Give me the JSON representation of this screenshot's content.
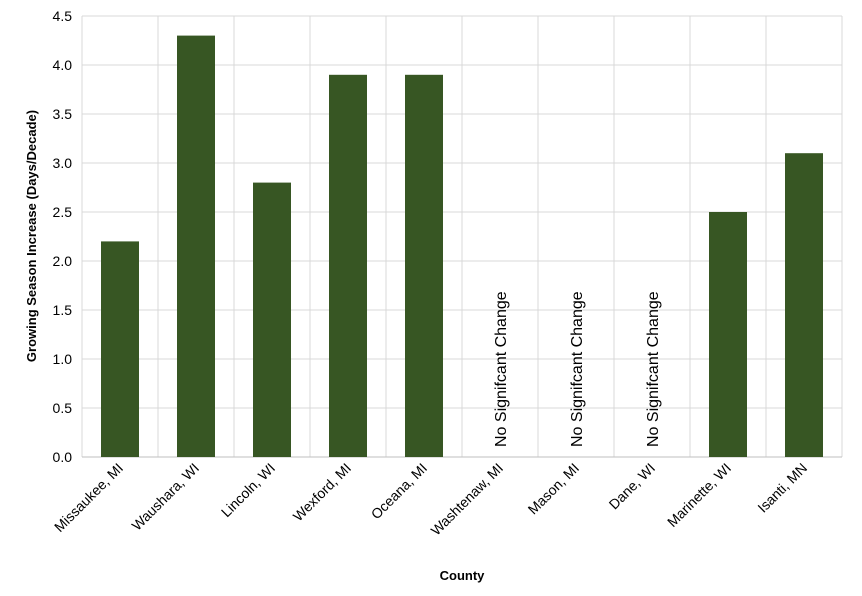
{
  "chart_data": {
    "type": "bar",
    "y_label": "Growing Season Increase (Days/Decade)",
    "x_label": "County",
    "categories": [
      "Missaukee, MI",
      "Waushara, WI",
      "Lincoln, WI",
      "Wexford, MI",
      "Oceana, MI",
      "Washtenaw, MI",
      "Mason, MI",
      "Dane, WI",
      "Marinette, WI",
      "Isanti, MN"
    ],
    "values": [
      2.2,
      4.3,
      2.8,
      3.9,
      3.9,
      null,
      null,
      null,
      2.5,
      3.1
    ],
    "annotations": [
      {
        "category": "Washtenaw, MI",
        "text": "No Signifcant Change"
      },
      {
        "category": "Mason, MI",
        "text": "No Signifcant Change"
      },
      {
        "category": "Dane, WI",
        "text": "No Signifcant Change"
      }
    ],
    "color": "#375623",
    "ylim": [
      0,
      4.5
    ],
    "yticks": [
      {
        "value": 0,
        "label": "0.0"
      },
      0.5,
      {
        "value": 1,
        "label": "1.0"
      },
      1.5,
      {
        "value": 2,
        "label": "2.0"
      },
      2.5,
      {
        "value": 3,
        "label": "3.0"
      },
      3.5,
      {
        "value": 4,
        "label": "4.0"
      },
      4.5
    ],
    "grid": true
  }
}
